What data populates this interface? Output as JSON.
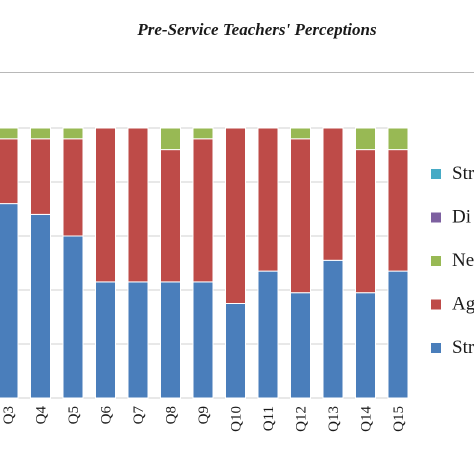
{
  "chart_data": {
    "type": "bar",
    "stacked": true,
    "title": "Pre-Service Teachers' Perceptions",
    "xlabel": "",
    "ylabel": "",
    "ylim": [
      0,
      100
    ],
    "grid": true,
    "legend_position": "right",
    "categories": [
      "Q3",
      "Q4",
      "Q5",
      "Q6",
      "Q7",
      "Q8",
      "Q9",
      "Q10",
      "Q11",
      "Q12",
      "Q13",
      "Q14",
      "Q15"
    ],
    "series": [
      {
        "name": "Str",
        "color": "#4a7ebb",
        "values": [
          72,
          68,
          60,
          43,
          43,
          43,
          43,
          35,
          47,
          39,
          51,
          39,
          47
        ]
      },
      {
        "name": "Ag",
        "color": "#be4b48",
        "values": [
          24,
          28,
          36,
          57,
          57,
          49,
          53,
          65,
          53,
          57,
          49,
          53,
          45
        ]
      },
      {
        "name": "Ne",
        "color": "#98b954",
        "values": [
          4,
          4,
          4,
          0,
          0,
          8,
          4,
          0,
          0,
          4,
          0,
          8,
          8
        ]
      },
      {
        "name": "Di",
        "color": "#7d60a0",
        "values": [
          0,
          0,
          0,
          0,
          0,
          0,
          0,
          0,
          0,
          0,
          0,
          0,
          0
        ]
      },
      {
        "name": "Str",
        "color": "#46aac5",
        "values": [
          0,
          0,
          0,
          0,
          0,
          0,
          0,
          0,
          0,
          0,
          0,
          0,
          0
        ]
      }
    ],
    "legend": [
      {
        "label": "Str",
        "color": "#46aac5"
      },
      {
        "label": "Di",
        "color": "#7d60a0"
      },
      {
        "label": "Ne",
        "color": "#98b954"
      },
      {
        "label": "Ag",
        "color": "#be4b48"
      },
      {
        "label": "Str",
        "color": "#4a7ebb"
      }
    ]
  }
}
